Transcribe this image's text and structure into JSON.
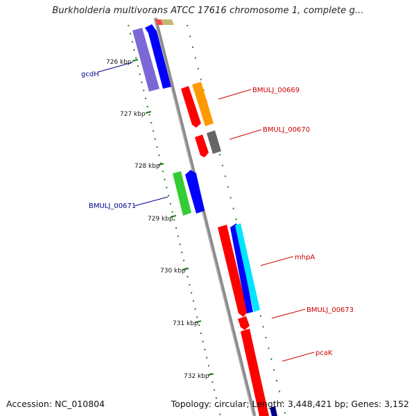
{
  "title": "Burkholderia multivorans ATCC 17616 chromosome 1, complete g...",
  "footer": {
    "accession": "Accession: NC_010804",
    "summary": "Topology: circular; Length: 3,448,421 bp; Genes: 3,152"
  },
  "scale_ticks": [
    {
      "label": "726 kbp"
    },
    {
      "label": "727 kbp"
    },
    {
      "label": "728 kbp"
    },
    {
      "label": "729 kbp"
    },
    {
      "label": "730 kbp"
    },
    {
      "label": "731 kbp"
    },
    {
      "label": "732 kbp"
    }
  ],
  "gene_labels": [
    {
      "label": "gcdH",
      "color": "#00008b"
    },
    {
      "label": "BMULJ_00669",
      "color": "#cc0000"
    },
    {
      "label": "BMULJ_00670",
      "color": "#cc0000"
    },
    {
      "label": "BMULJ_00671",
      "color": "#00008b"
    },
    {
      "label": "mhpA",
      "color": "#cc0000"
    },
    {
      "label": "BMULJ_00673",
      "color": "#cc0000"
    },
    {
      "label": "pcaK",
      "color": "#cc0000"
    }
  ],
  "colors": {
    "backbone": "#8c8c8c",
    "ticks": "#1f7a1f",
    "red": "#ff0000",
    "blue": "#0000ff",
    "cyan": "#00e5ff",
    "orange": "#ff9900",
    "purple": "#7b68d6",
    "green": "#33cc33",
    "gray": "#666666",
    "khaki": "#c8b878"
  }
}
